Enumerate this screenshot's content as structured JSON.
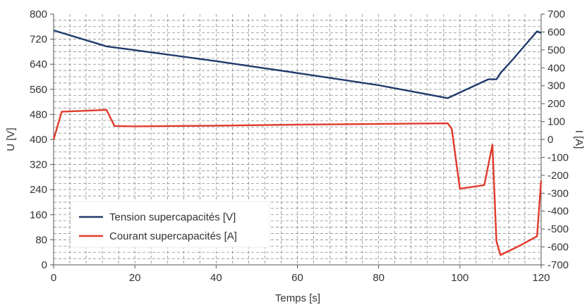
{
  "colors": {
    "tension": "#1f3a6b",
    "courant": "#e03a2b",
    "grid": "#7a7a7a",
    "axis": "#555555",
    "text": "#333333"
  },
  "chart_data": {
    "type": "line",
    "title": "",
    "xlabel": "Temps [s]",
    "ylabel_left": "U [V]",
    "ylabel_right": "I [A]",
    "xlim": [
      0,
      120
    ],
    "ylim_left": [
      0,
      800
    ],
    "ylim_right": [
      -700,
      700
    ],
    "x_ticks": [
      "0",
      "20",
      "40",
      "60",
      "80",
      "100",
      "120"
    ],
    "y_left_ticks": [
      "0",
      "80",
      "160",
      "240",
      "320",
      "400",
      "480",
      "560",
      "640",
      "720",
      "800"
    ],
    "y_right_ticks": [
      "700",
      "600",
      "500",
      "400",
      "300",
      "200",
      "100",
      "0",
      "-100",
      "-200",
      "-300",
      "-400",
      "-500",
      "-600",
      "-700"
    ],
    "grid": true,
    "legend_position": "bottom-left",
    "series": [
      {
        "name": "Tension supercapacités [V]",
        "axis": "left",
        "color_key": "tension",
        "points": [
          [
            0,
            748
          ],
          [
            13,
            697
          ],
          [
            20,
            685
          ],
          [
            40,
            650
          ],
          [
            60,
            612
          ],
          [
            80,
            573
          ],
          [
            97,
            532
          ],
          [
            100,
            550
          ],
          [
            107,
            592
          ],
          [
            109,
            592
          ],
          [
            110,
            612
          ],
          [
            113,
            655
          ],
          [
            119,
            745
          ],
          [
            120,
            740
          ]
        ]
      },
      {
        "name": "Courant supercapacités [A]",
        "axis": "right",
        "color_key": "courant",
        "points": [
          [
            0,
            0
          ],
          [
            2,
            155
          ],
          [
            13,
            165
          ],
          [
            15,
            75
          ],
          [
            20,
            73
          ],
          [
            40,
            77
          ],
          [
            60,
            83
          ],
          [
            80,
            87
          ],
          [
            97,
            90
          ],
          [
            98,
            60
          ],
          [
            100,
            -275
          ],
          [
            106,
            -255
          ],
          [
            108,
            -30
          ],
          [
            109,
            -570
          ],
          [
            110,
            -645
          ],
          [
            115,
            -590
          ],
          [
            119,
            -540
          ],
          [
            120,
            -230
          ]
        ]
      }
    ]
  }
}
